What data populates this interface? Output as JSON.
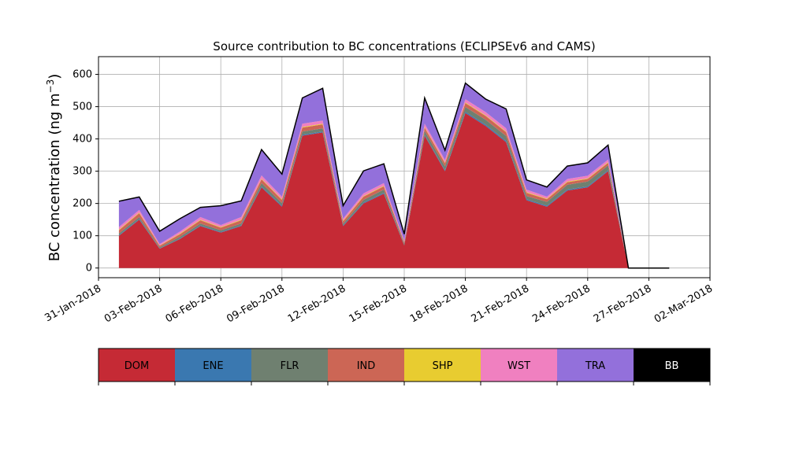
{
  "chart_data": {
    "type": "area",
    "stacked": true,
    "title": "Source contribution to BC concentrations (ECLIPSEv6 and CAMS)",
    "ylabel": "BC concentration (ng m",
    "ylabel_sup": "−3",
    "ylabel_close": ")",
    "xlim": [
      "2018-01-31",
      "2018-03-02"
    ],
    "ylim": [
      -30,
      655
    ],
    "yticks": [
      0,
      100,
      200,
      300,
      400,
      500,
      600
    ],
    "xticks": [
      "31-Jan-2018",
      "03-Feb-2018",
      "06-Feb-2018",
      "09-Feb-2018",
      "12-Feb-2018",
      "15-Feb-2018",
      "18-Feb-2018",
      "21-Feb-2018",
      "24-Feb-2018",
      "27-Feb-2018",
      "02-Mar-2018"
    ],
    "grid": true,
    "x": [
      "2018-02-01",
      "2018-02-02",
      "2018-02-03",
      "2018-02-04",
      "2018-02-05",
      "2018-02-06",
      "2018-02-07",
      "2018-02-08",
      "2018-02-09",
      "2018-02-10",
      "2018-02-11",
      "2018-02-12",
      "2018-02-13",
      "2018-02-14",
      "2018-02-15",
      "2018-02-16",
      "2018-02-17",
      "2018-02-18",
      "2018-02-19",
      "2018-02-20",
      "2018-02-21",
      "2018-02-22",
      "2018-02-23",
      "2018-02-24",
      "2018-02-25",
      "2018-02-26",
      "2018-02-27",
      "2018-02-28"
    ],
    "series": [
      {
        "name": "DOM",
        "color": "#c52a35",
        "values": [
          100,
          150,
          60,
          90,
          130,
          110,
          130,
          250,
          190,
          410,
          420,
          130,
          200,
          230,
          70,
          410,
          300,
          480,
          440,
          390,
          210,
          190,
          240,
          250,
          300,
          0,
          0,
          0
        ]
      },
      {
        "name": "ENE",
        "color": "#3a78b0",
        "values": [
          2,
          2,
          1,
          2,
          2,
          2,
          2,
          3,
          3,
          3,
          3,
          2,
          3,
          3,
          1,
          3,
          3,
          4,
          4,
          4,
          3,
          3,
          3,
          3,
          3,
          0,
          0,
          0
        ]
      },
      {
        "name": "FLR",
        "color": "#6f8070",
        "values": [
          5,
          6,
          3,
          5,
          6,
          5,
          6,
          10,
          8,
          10,
          10,
          5,
          8,
          10,
          4,
          12,
          12,
          15,
          15,
          15,
          10,
          12,
          15,
          15,
          15,
          0,
          0,
          0
        ]
      },
      {
        "name": "IND",
        "color": "#cc6655",
        "values": [
          10,
          12,
          5,
          8,
          10,
          8,
          10,
          12,
          10,
          12,
          12,
          8,
          10,
          10,
          5,
          10,
          10,
          12,
          12,
          12,
          10,
          8,
          8,
          8,
          8,
          0,
          0,
          0
        ]
      },
      {
        "name": "SHP",
        "color": "#e8cc30",
        "values": [
          2,
          2,
          1,
          2,
          2,
          2,
          2,
          2,
          2,
          2,
          2,
          2,
          2,
          2,
          1,
          2,
          2,
          2,
          2,
          2,
          2,
          2,
          2,
          2,
          2,
          0,
          0,
          0
        ]
      },
      {
        "name": "WST",
        "color": "#f080c0",
        "values": [
          8,
          8,
          4,
          6,
          8,
          6,
          8,
          10,
          8,
          10,
          10,
          6,
          8,
          8,
          4,
          10,
          8,
          10,
          10,
          10,
          8,
          6,
          8,
          8,
          8,
          0,
          0,
          0
        ]
      },
      {
        "name": "TRA",
        "color": "#9370db",
        "values": [
          80,
          40,
          40,
          40,
          30,
          60,
          50,
          80,
          70,
          80,
          100,
          40,
          70,
          60,
          20,
          80,
          30,
          50,
          40,
          60,
          30,
          30,
          40,
          40,
          45,
          0,
          0,
          0
        ]
      },
      {
        "name": "BB",
        "color": "#000000",
        "values": [
          0,
          0,
          0,
          0,
          0,
          0,
          0,
          0,
          0,
          0,
          0,
          0,
          0,
          0,
          0,
          0,
          0,
          0,
          0,
          0,
          0,
          0,
          0,
          0,
          0,
          0,
          0,
          0
        ]
      }
    ],
    "legend_placement": "bottom"
  }
}
